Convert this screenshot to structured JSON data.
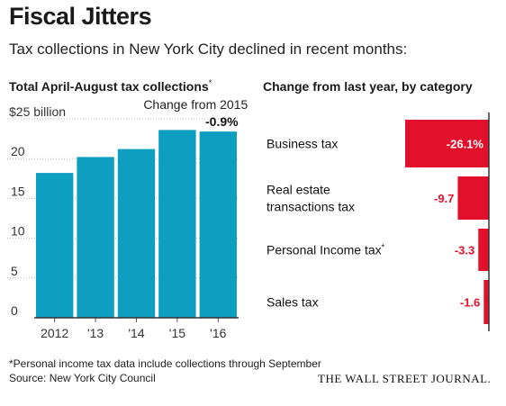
{
  "title": "Fiscal Jitters",
  "subtitle": "Tax collections in New York City declined in recent months:",
  "colors": {
    "bar": "#0e9ec0",
    "negative_bar": "#e3102b",
    "negative_text": "#e3102b",
    "text": "#1a1a1a"
  },
  "footnote": "*Personal income tax data include collections through September",
  "source": "Source: New York City Council",
  "publisher": "THE WALL STREET JOURNAL.",
  "chart_data": [
    {
      "type": "bar",
      "title": "Total April-August tax collections",
      "title_footnote_mark": "*",
      "categories": [
        "2012",
        "'13",
        "'14",
        "'15",
        "'16"
      ],
      "values": [
        18.2,
        20.2,
        21.2,
        23.6,
        23.4
      ],
      "unit_label": "$25 billion",
      "yticks": [
        "0",
        "5",
        "10",
        "15",
        "20"
      ],
      "ylim": [
        0,
        25
      ],
      "annotation": {
        "label": "Change from 2015",
        "value": "-0.9%"
      }
    },
    {
      "type": "bar",
      "orientation": "horizontal",
      "title": "Change from last year, by category",
      "categories": [
        {
          "lines": [
            "Business tax"
          ],
          "mark": ""
        },
        {
          "lines": [
            "Real estate",
            "transactions tax"
          ],
          "mark": ""
        },
        {
          "lines": [
            "Personal Income tax"
          ],
          "mark": "*"
        },
        {
          "lines": [
            "Sales tax"
          ],
          "mark": ""
        }
      ],
      "values": [
        -26.1,
        -9.7,
        -3.3,
        -1.6
      ],
      "value_labels": [
        "-26.1%",
        "-9.7",
        "-3.3",
        "-1.6"
      ]
    }
  ]
}
